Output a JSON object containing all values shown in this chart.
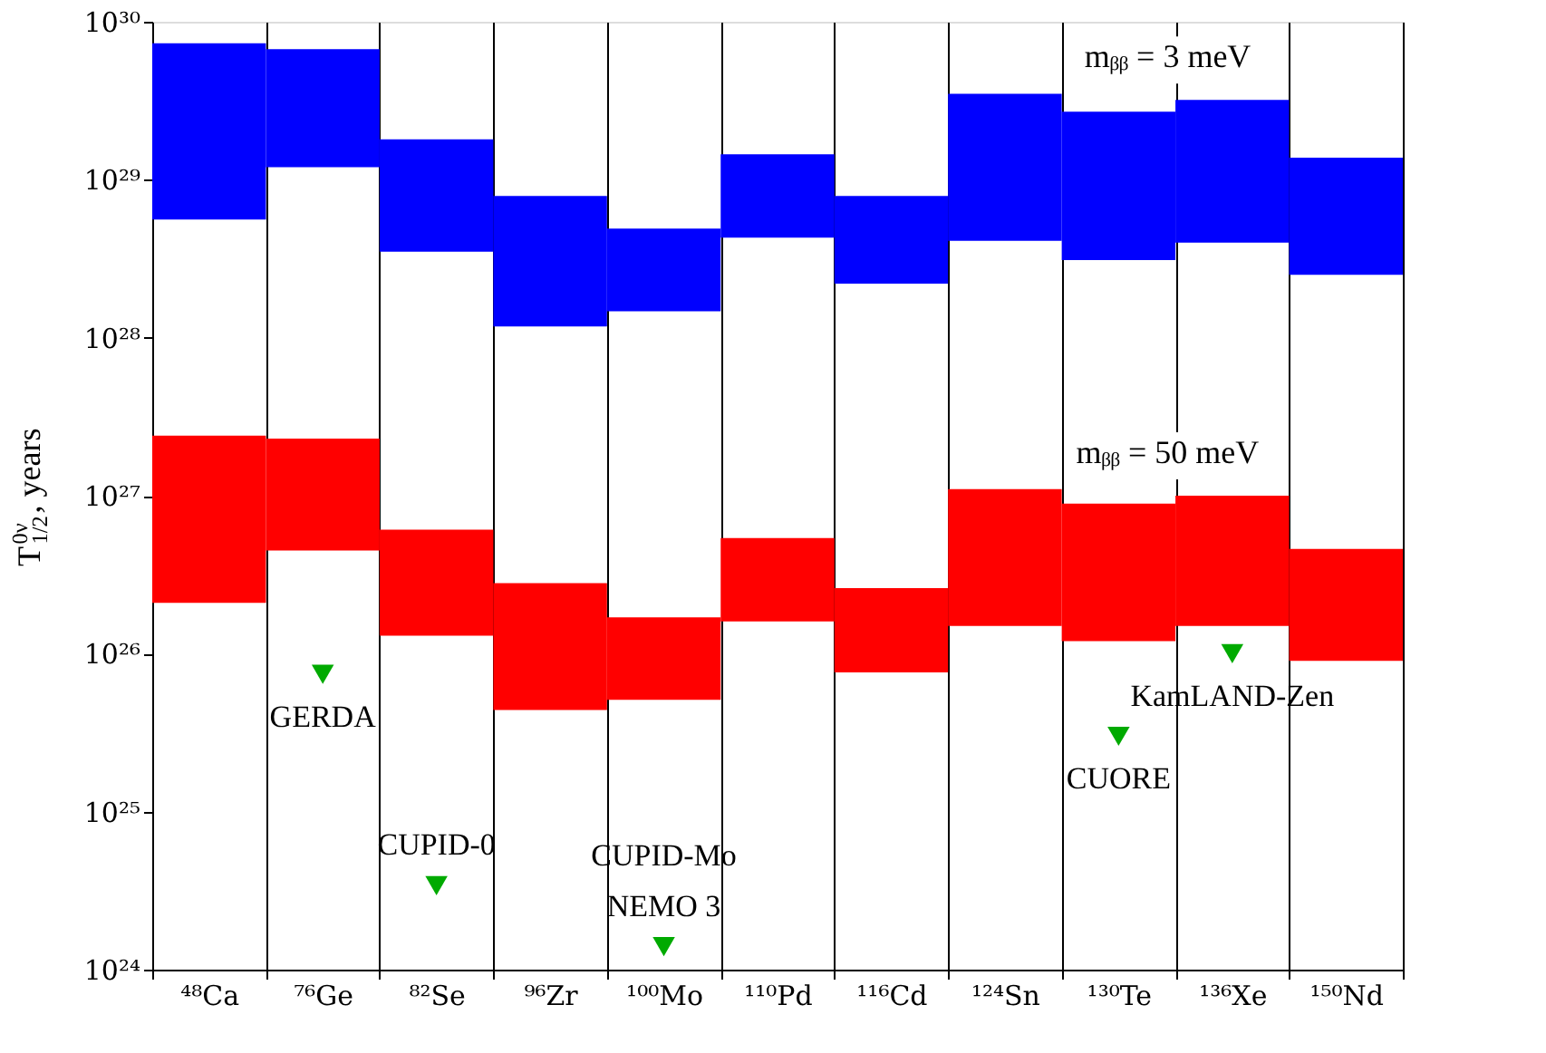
{
  "chart_data": {
    "type": "bar",
    "ylabel": "T$^{0ν}$$_{1/2}$, years",
    "categories": [
      "⁴⁸Ca",
      "⁷⁶Ge",
      "⁸²Se",
      "⁹⁶Zr",
      "¹⁰⁰Mo",
      "¹¹⁰Pd",
      "¹¹⁶Cd",
      "¹²⁴Sn",
      "¹³⁰Te",
      "¹³⁶Xe",
      "¹⁵⁰Nd"
    ],
    "series": [
      {
        "name": "mᵦᵦ = 3 meV",
        "color": "#0000ff",
        "base": [
          5.6e+28,
          1.2e+29,
          3.5e+28,
          1.18e+28,
          1.47e+28,
          4.3e+28,
          2.2e+28,
          4.1e+28,
          3.1e+28,
          4e+28,
          2.5e+28
        ],
        "values": [
          6.74e+29,
          5.5e+29,
          1.45e+29,
          6.72e+28,
          3.43e+28,
          1.02e+29,
          5.7e+28,
          3.09e+29,
          2.39e+29,
          2.8e+29,
          1.13e+29
        ]
      },
      {
        "name": "mᵦᵦ = 50 meV",
        "color": "#ff0000",
        "base": [
          2.1e+26,
          4.5e+26,
          1.3e+26,
          4.4e+25,
          5.1e+25,
          1.6e+26,
          7.6e+25,
          1.5e+26,
          1.2e+26,
          1.5e+26,
          9e+25
        ],
        "values": [
          2.19e+27,
          1.85e+27,
          4.8e+26,
          2.36e+26,
          1.19e+26,
          3.8e+26,
          1.84e+26,
          9.5e+26,
          7.7e+26,
          8.5e+26,
          3.7e+26
        ]
      },
      {
        "type": "scatter",
        "color": "#00aa00",
        "marker": "triangle",
        "x": [
          "⁷⁶Ge",
          "⁸²Se",
          "¹⁰⁰Mo",
          "¹³⁰Te",
          "¹³⁶Xe"
        ],
        "values": [
          7.4e+25,
          3.4e+24,
          1.4e+24,
          3e+25,
          1e+26
        ]
      }
    ],
    "annotations": [
      {
        "text": "GERDA",
        "x": "⁷⁶Ge",
        "y": 7.4e+25
      },
      {
        "text": "CUPID-0",
        "x": "⁸²Se",
        "y": 3.4e+24
      },
      {
        "text": "CUPID-Mo",
        "x": "¹⁰⁰Mo",
        "y": 1.4e+24
      },
      {
        "text": "NEMO 3",
        "x": "¹⁰⁰Mo",
        "y": 1.4e+24
      },
      {
        "text": "CUORE",
        "x": "¹³⁰Te",
        "y": 3e+25
      },
      {
        "text": "KamLAND-Zen",
        "x": "¹³⁶Xe",
        "y": 1e+26
      }
    ],
    "ylim": [
      1e+24,
      1e+30
    ],
    "yticks": [
      {
        "value": 1e+24,
        "label": "10²⁴"
      },
      {
        "value": 1e+25,
        "label": "10²⁵"
      },
      {
        "value": 1e+26,
        "label": "10²⁶"
      },
      {
        "value": 1e+27,
        "label": "10²⁷"
      },
      {
        "value": 1e+28,
        "label": "10²⁸"
      },
      {
        "value": 1e+29,
        "label": "10²⁹"
      },
      {
        "value": 1e+30,
        "label": "10³⁰"
      }
    ],
    "log": true,
    "grid": "x"
  }
}
